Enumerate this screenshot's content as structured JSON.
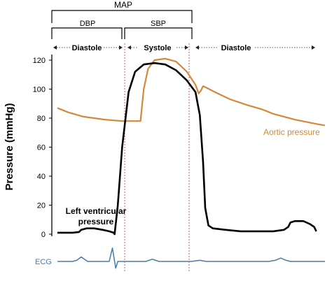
{
  "chart_data": {
    "type": "line",
    "ylabel": "Pressure (mmHg)",
    "ylim": [
      0,
      120
    ],
    "yticks": [
      "0",
      "20",
      "40",
      "60",
      "80",
      "100",
      "120"
    ],
    "grid": false,
    "brackets": {
      "top": "MAP",
      "left": "DBP",
      "right": "SBP"
    },
    "phases": [
      "Diastole",
      "Systole",
      "Diastole"
    ],
    "colors": {
      "aortic": "#D4883B",
      "lv": "#000000",
      "ecg": "#4A7BA7",
      "marker": "#C06070",
      "axis": "#000000"
    },
    "series": [
      {
        "name": "Aortic pressure",
        "points": [
          [
            0.0,
            87
          ],
          [
            0.05,
            84
          ],
          [
            0.12,
            81
          ],
          [
            0.22,
            79
          ],
          [
            0.3,
            78
          ],
          [
            0.37,
            78
          ],
          [
            0.385,
            78
          ],
          [
            0.4,
            100
          ],
          [
            0.42,
            114
          ],
          [
            0.45,
            120
          ],
          [
            0.5,
            121
          ],
          [
            0.55,
            119
          ],
          [
            0.6,
            112
          ],
          [
            0.64,
            103
          ],
          [
            0.655,
            97
          ],
          [
            0.665,
            99
          ],
          [
            0.675,
            102
          ],
          [
            0.69,
            101
          ],
          [
            0.73,
            98
          ],
          [
            0.8,
            93
          ],
          [
            0.88,
            89
          ],
          [
            0.95,
            86
          ],
          [
            1.0,
            83
          ],
          [
            1.1,
            79
          ],
          [
            1.2,
            76
          ],
          [
            1.24,
            75
          ]
        ]
      },
      {
        "name": "Left ventricular pressure",
        "points": [
          [
            0.0,
            1
          ],
          [
            0.07,
            1
          ],
          [
            0.1,
            1.5
          ],
          [
            0.11,
            3
          ],
          [
            0.135,
            4
          ],
          [
            0.17,
            4
          ],
          [
            0.21,
            3
          ],
          [
            0.24,
            2
          ],
          [
            0.26,
            1
          ],
          [
            0.265,
            0
          ],
          [
            0.28,
            20
          ],
          [
            0.3,
            60
          ],
          [
            0.33,
            98
          ],
          [
            0.36,
            112
          ],
          [
            0.4,
            117
          ],
          [
            0.45,
            118
          ],
          [
            0.5,
            117
          ],
          [
            0.55,
            113
          ],
          [
            0.6,
            106
          ],
          [
            0.64,
            98
          ],
          [
            0.66,
            82
          ],
          [
            0.675,
            50
          ],
          [
            0.685,
            18
          ],
          [
            0.7,
            6
          ],
          [
            0.72,
            4
          ],
          [
            0.78,
            3
          ],
          [
            0.85,
            2
          ],
          [
            0.95,
            2
          ],
          [
            1.0,
            2
          ],
          [
            1.05,
            3
          ],
          [
            1.07,
            5
          ],
          [
            1.08,
            8
          ],
          [
            1.1,
            9
          ],
          [
            1.14,
            9
          ],
          [
            1.17,
            7
          ],
          [
            1.19,
            5
          ],
          [
            1.2,
            2
          ]
        ]
      },
      {
        "name": "ECG",
        "points": [
          [
            0.0,
            0
          ],
          [
            0.07,
            0
          ],
          [
            0.09,
            1
          ],
          [
            0.11,
            4
          ],
          [
            0.14,
            0
          ],
          [
            0.22,
            0
          ],
          [
            0.24,
            0
          ],
          [
            0.255,
            12
          ],
          [
            0.27,
            -6
          ],
          [
            0.28,
            0
          ],
          [
            0.36,
            0
          ],
          [
            0.41,
            0
          ],
          [
            0.44,
            2
          ],
          [
            0.47,
            0
          ],
          [
            0.62,
            0
          ],
          [
            0.66,
            1
          ],
          [
            0.69,
            0
          ],
          [
            0.75,
            0
          ],
          [
            0.8,
            0
          ],
          [
            0.9,
            0
          ],
          [
            0.98,
            0
          ],
          [
            1.01,
            1
          ],
          [
            1.035,
            3
          ],
          [
            1.06,
            1
          ],
          [
            1.08,
            0
          ],
          [
            1.16,
            0
          ],
          [
            1.24,
            0
          ]
        ]
      }
    ]
  }
}
